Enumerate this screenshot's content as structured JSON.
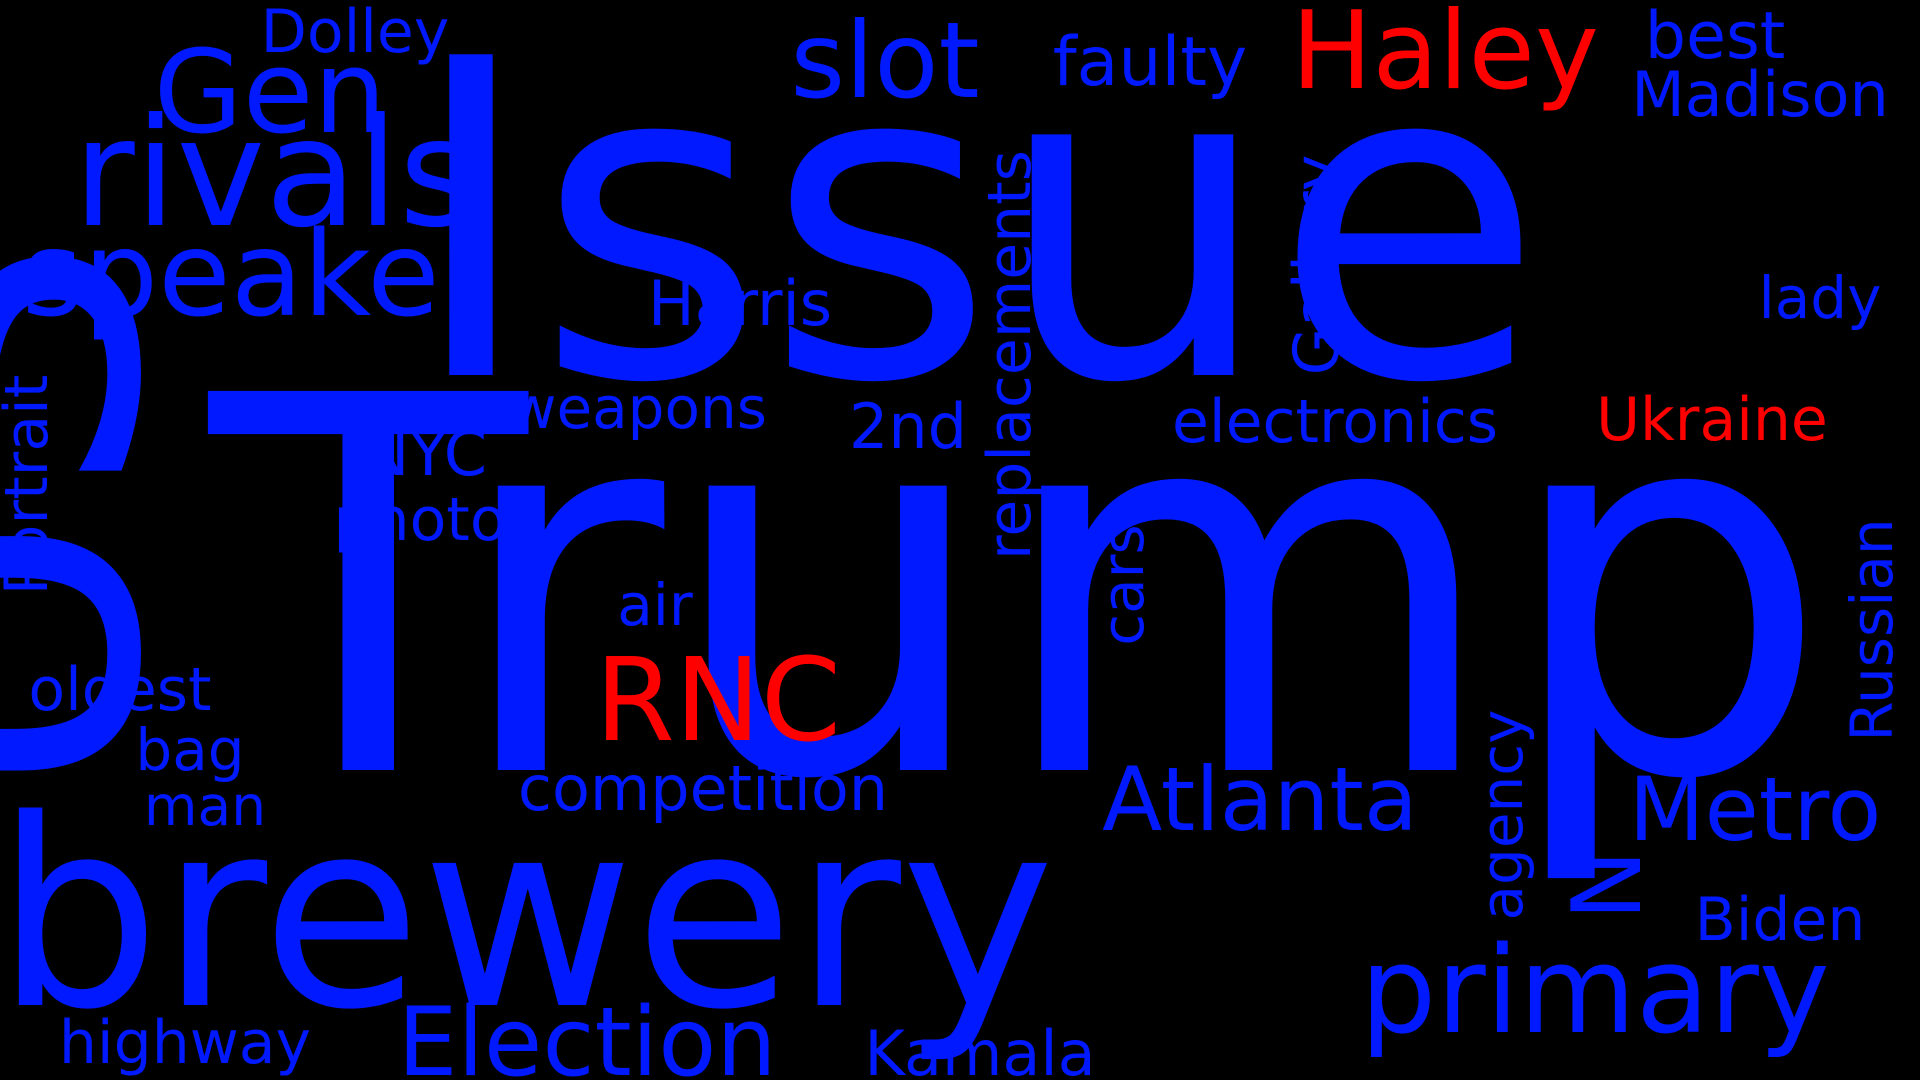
{
  "background": "#000000",
  "colors": {
    "blue": "#0019FF",
    "red": "#FF0000"
  },
  "words": [
    {
      "text": "Trump",
      "color": "blue"
    },
    {
      "text": "Issue",
      "color": "blue"
    },
    {
      "text": "US",
      "color": "blue"
    },
    {
      "text": "brewery",
      "color": "blue"
    },
    {
      "text": "rivals",
      "color": "blue"
    },
    {
      "text": "speaker",
      "color": "blue"
    },
    {
      "text": "Gen",
      "color": "blue"
    },
    {
      "text": "slot",
      "color": "blue"
    },
    {
      "text": "Haley",
      "color": "red"
    },
    {
      "text": "faulty",
      "color": "blue"
    },
    {
      "text": "best",
      "color": "blue"
    },
    {
      "text": "Madison",
      "color": "blue"
    },
    {
      "text": "Dolley",
      "color": "blue"
    },
    {
      "text": "lady",
      "color": "blue"
    },
    {
      "text": "Ukraine",
      "color": "red"
    },
    {
      "text": "electronics",
      "color": "blue"
    },
    {
      "text": "Gallery",
      "color": "blue"
    },
    {
      "text": "replacements",
      "color": "blue"
    },
    {
      "text": "Harris",
      "color": "blue"
    },
    {
      "text": "weapons",
      "color": "blue"
    },
    {
      "text": "2nd",
      "color": "blue"
    },
    {
      "text": "NYC",
      "color": "blue"
    },
    {
      "text": "photo",
      "color": "blue"
    },
    {
      "text": "Portrait",
      "color": "blue"
    },
    {
      "text": "air",
      "color": "blue"
    },
    {
      "text": "cars",
      "color": "blue"
    },
    {
      "text": "RNC",
      "color": "red"
    },
    {
      "text": "oldest",
      "color": "blue"
    },
    {
      "text": "bag",
      "color": "blue"
    },
    {
      "text": "man",
      "color": "blue"
    },
    {
      "text": "competition",
      "color": "blue"
    },
    {
      "text": "Atlanta",
      "color": "blue"
    },
    {
      "text": "agency",
      "color": "blue"
    },
    {
      "text": "Metro",
      "color": "blue"
    },
    {
      "text": "Russian",
      "color": "blue"
    },
    {
      "text": "N",
      "color": "blue"
    },
    {
      "text": "Biden",
      "color": "blue"
    },
    {
      "text": "primary",
      "color": "blue"
    },
    {
      "text": "Election",
      "color": "blue"
    },
    {
      "text": "Kamala",
      "color": "blue"
    },
    {
      "text": "highway",
      "color": "blue"
    }
  ]
}
